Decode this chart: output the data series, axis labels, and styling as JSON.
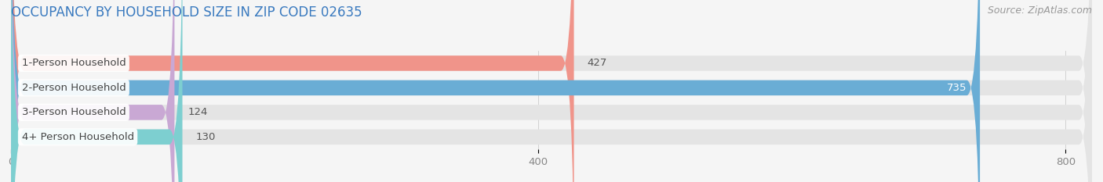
{
  "title": "OCCUPANCY BY HOUSEHOLD SIZE IN ZIP CODE 02635",
  "source": "Source: ZipAtlas.com",
  "categories": [
    "1-Person Household",
    "2-Person Household",
    "3-Person Household",
    "4+ Person Household"
  ],
  "values": [
    427,
    735,
    124,
    130
  ],
  "bar_colors": [
    "#f0948a",
    "#6aadd5",
    "#c9a8d4",
    "#7dcfd0"
  ],
  "value_colors": [
    "#555555",
    "#ffffff",
    "#555555",
    "#555555"
  ],
  "value_inside": [
    false,
    true,
    false,
    false
  ],
  "xlim": [
    0,
    820
  ],
  "xticks": [
    0,
    400,
    800
  ],
  "background_color": "#f5f5f5",
  "bar_bg_color": "#e4e4e4",
  "title_color": "#3a7abf",
  "source_color": "#999999",
  "label_text_color": "#444444",
  "title_fontsize": 12,
  "label_fontsize": 9.5,
  "value_fontsize": 9.5,
  "source_fontsize": 9,
  "bar_height": 0.62,
  "fig_width": 14.06,
  "fig_height": 2.33,
  "dpi": 100
}
